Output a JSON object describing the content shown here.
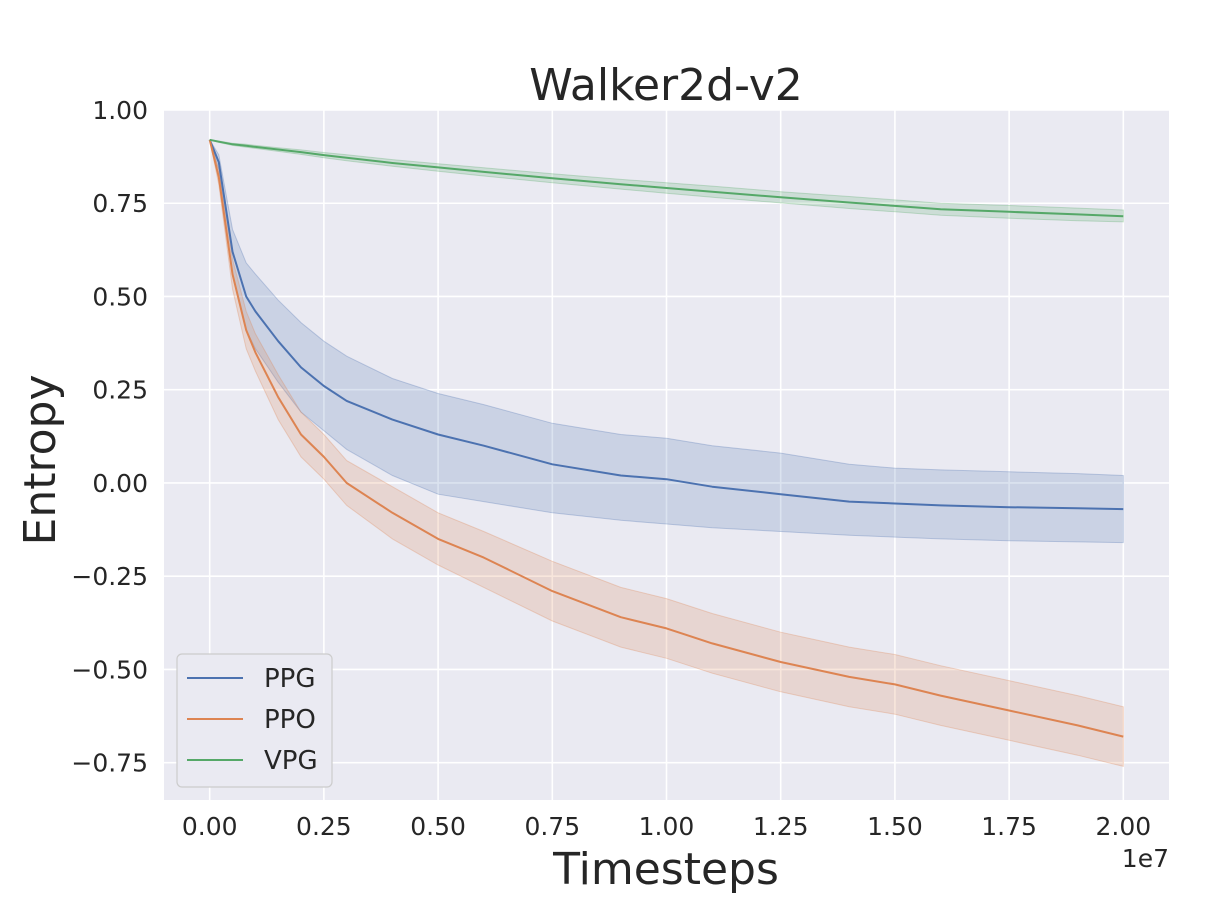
{
  "chart_data": {
    "type": "line",
    "title": "Walker2d-v2",
    "xlabel": "Timesteps",
    "ylabel": "Entropy",
    "x_offset_label": "1e7",
    "xlim": [
      -0.1,
      2.1
    ],
    "ylim": [
      -0.85,
      1.0
    ],
    "x_ticks": [
      0.0,
      0.25,
      0.5,
      0.75,
      1.0,
      1.25,
      1.5,
      1.75,
      2.0
    ],
    "x_tick_labels": [
      "0.00",
      "0.25",
      "0.50",
      "0.75",
      "1.00",
      "1.25",
      "1.50",
      "1.75",
      "2.00"
    ],
    "y_ticks": [
      1.0,
      0.75,
      0.5,
      0.25,
      0.0,
      -0.25,
      -0.5,
      -0.75
    ],
    "y_tick_labels": [
      "1.00",
      "0.75",
      "0.50",
      "0.25",
      "0.00",
      "−0.25",
      "−0.50",
      "−0.75"
    ],
    "grid": true,
    "legend_position": "lower-left",
    "x": [
      0.0,
      0.02,
      0.05,
      0.08,
      0.1,
      0.15,
      0.2,
      0.25,
      0.3,
      0.4,
      0.5,
      0.6,
      0.75,
      0.9,
      1.0,
      1.1,
      1.25,
      1.4,
      1.5,
      1.6,
      1.75,
      1.9,
      2.0
    ],
    "series": [
      {
        "name": "PPG",
        "color": "#4c72b0",
        "values": [
          0.92,
          0.86,
          0.62,
          0.5,
          0.46,
          0.38,
          0.31,
          0.26,
          0.22,
          0.17,
          0.13,
          0.1,
          0.05,
          0.02,
          0.01,
          -0.01,
          -0.03,
          -0.05,
          -0.055,
          -0.06,
          -0.065,
          -0.068,
          -0.07
        ],
        "lower": [
          0.92,
          0.84,
          0.56,
          0.41,
          0.36,
          0.27,
          0.19,
          0.14,
          0.09,
          0.02,
          -0.03,
          -0.05,
          -0.08,
          -0.1,
          -0.11,
          -0.12,
          -0.13,
          -0.14,
          -0.145,
          -0.15,
          -0.155,
          -0.158,
          -0.16
        ],
        "upper": [
          0.92,
          0.88,
          0.68,
          0.59,
          0.56,
          0.49,
          0.43,
          0.38,
          0.34,
          0.28,
          0.24,
          0.21,
          0.16,
          0.13,
          0.12,
          0.1,
          0.08,
          0.05,
          0.04,
          0.035,
          0.03,
          0.025,
          0.02
        ]
      },
      {
        "name": "PPO",
        "color": "#dd8452",
        "values": [
          0.92,
          0.82,
          0.56,
          0.41,
          0.35,
          0.23,
          0.13,
          0.07,
          0.0,
          -0.08,
          -0.15,
          -0.2,
          -0.29,
          -0.36,
          -0.39,
          -0.43,
          -0.48,
          -0.52,
          -0.54,
          -0.57,
          -0.61,
          -0.65,
          -0.68
        ],
        "lower": [
          0.92,
          0.8,
          0.52,
          0.36,
          0.3,
          0.17,
          0.07,
          0.01,
          -0.06,
          -0.15,
          -0.22,
          -0.28,
          -0.37,
          -0.44,
          -0.47,
          -0.51,
          -0.56,
          -0.6,
          -0.62,
          -0.65,
          -0.69,
          -0.73,
          -0.76
        ],
        "upper": [
          0.92,
          0.84,
          0.6,
          0.46,
          0.4,
          0.29,
          0.19,
          0.13,
          0.06,
          -0.01,
          -0.08,
          -0.13,
          -0.21,
          -0.28,
          -0.31,
          -0.35,
          -0.4,
          -0.44,
          -0.46,
          -0.49,
          -0.53,
          -0.57,
          -0.6
        ]
      },
      {
        "name": "VPG",
        "color": "#55a868",
        "values": [
          0.92,
          0.915,
          0.908,
          0.904,
          0.901,
          0.894,
          0.887,
          0.879,
          0.872,
          0.858,
          0.846,
          0.834,
          0.817,
          0.801,
          0.791,
          0.781,
          0.766,
          0.752,
          0.743,
          0.734,
          0.727,
          0.72,
          0.715
        ],
        "lower": [
          0.92,
          0.913,
          0.905,
          0.9,
          0.897,
          0.889,
          0.881,
          0.872,
          0.864,
          0.849,
          0.836,
          0.823,
          0.805,
          0.788,
          0.777,
          0.766,
          0.751,
          0.736,
          0.727,
          0.718,
          0.71,
          0.703,
          0.7
        ],
        "upper": [
          0.92,
          0.917,
          0.911,
          0.908,
          0.905,
          0.899,
          0.893,
          0.886,
          0.88,
          0.867,
          0.856,
          0.845,
          0.829,
          0.814,
          0.805,
          0.796,
          0.781,
          0.768,
          0.759,
          0.75,
          0.744,
          0.737,
          0.732
        ]
      }
    ]
  }
}
